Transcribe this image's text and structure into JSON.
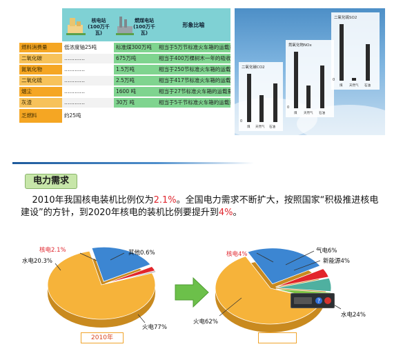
{
  "table": {
    "headers": {
      "nuclear": "核电站\n(100万千瓦)",
      "coal": "燃煤电站\n(100万千瓦)",
      "comparison": "形象比喻"
    },
    "rows": [
      {
        "name": "燃料消费量",
        "nuclear": "低浓度铀25吨",
        "coal": "标准煤300万吨",
        "compare": "相当于5万节标准火车箱的运载量"
      },
      {
        "name": "二氧化碳",
        "nuclear": "…………",
        "coal": "675万吨",
        "compare": "相当于400万棵树木一年的吸收量"
      },
      {
        "name": "氮氧化物",
        "nuclear": "…………",
        "coal": "1.5万吨",
        "compare": "相当于250节标准火车箱的运载量"
      },
      {
        "name": "二氧化硫",
        "nuclear": "…………",
        "coal": "2.5万吨",
        "compare": "相当于417节标准火车箱的运载量"
      },
      {
        "name": "烟尘",
        "nuclear": "…………",
        "coal": "1600 吨",
        "compare": "相当于27节标准火车箱的运载量"
      },
      {
        "name": "灰渣",
        "nuclear": "…………",
        "coal": "30万 吨",
        "compare": "相当于5千节标准火车箱的运载量"
      },
      {
        "name": "乏燃料",
        "nuclear": "约25吨",
        "coal": "",
        "compare": ""
      }
    ]
  },
  "emissions": {
    "co2": {
      "title": "二氧化碳CO2",
      "categories": [
        "煤",
        "天然气",
        "石油"
      ],
      "values": [
        100,
        55,
        80
      ],
      "zero": "0"
    },
    "nox": {
      "title": "氮氧化物NOx",
      "categories": [
        "煤",
        "天然气",
        "石油"
      ],
      "values": [
        100,
        40,
        75
      ],
      "zero": "0"
    },
    "so2": {
      "title": "二氧化硫SO2",
      "categories": [
        "煤",
        "天然气",
        "石油"
      ],
      "values": [
        100,
        5,
        65
      ],
      "zero": "0"
    }
  },
  "section": {
    "title": "电力需求",
    "paragraph_parts": [
      {
        "text": "2010年我国核电装机比例仅为",
        "hl": false
      },
      {
        "text": "2.1%",
        "hl": true
      },
      {
        "text": "。全国电力需求不断扩大，按照国家“积极推进核电建设”的方针，到2020年核电的装机比例要提升到",
        "hl": false
      },
      {
        "text": "4%",
        "hl": true
      },
      {
        "text": "。",
        "hl": false
      }
    ]
  },
  "chart_data": [
    {
      "type": "pie",
      "title": "2010年",
      "categories": [
        "火电",
        "水电",
        "核电",
        "其他"
      ],
      "values": [
        77,
        20.3,
        2.1,
        0.6
      ],
      "labels": [
        "火电77%",
        "水电20.3%",
        "核电2.1%",
        "其他0.6%"
      ],
      "colors": [
        "#f6b33a",
        "#3c86d2",
        "#e2262b",
        "#a7a7a7"
      ]
    },
    {
      "type": "pie",
      "title": "",
      "categories": [
        "火电",
        "水电",
        "核电",
        "气电",
        "新能源"
      ],
      "values": [
        62,
        24,
        4,
        6,
        4
      ],
      "labels": [
        "火电62%",
        "水电24%",
        "核电4%",
        "气电6%",
        "新能源4%"
      ],
      "colors": [
        "#f6b33a",
        "#3c86d2",
        "#e2262b",
        "#4fb0a0",
        "#7cc242"
      ]
    }
  ],
  "colors": {
    "nuclear_accent": "#e0262e",
    "header_teal": "#7fd1d4",
    "row_green": "#7fd48f",
    "row_orange": "#f5a623"
  }
}
